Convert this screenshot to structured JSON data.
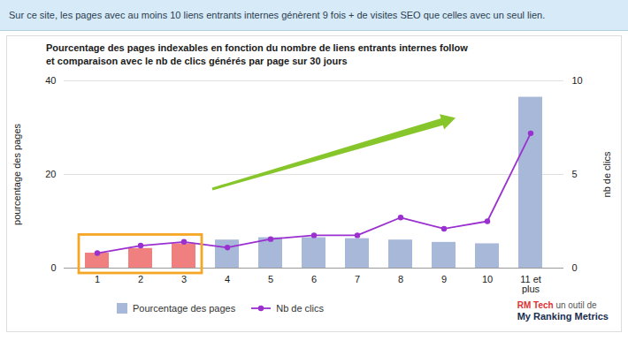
{
  "chart_data": {
    "type": "bar",
    "title": "Pourcentage des pages indexables en fonction du nombre de liens entrants internes follow",
    "subtitle": "et comparaison avec le nb de clics générés par page sur 30 jours",
    "annotations": [
      "Sur ce site, les pages avec au moins 10 liens entrants internes génèrent 9 fois + de visites SEO que celles avec un seul lien.",
      "RM Tech",
      "un outil de",
      "My Ranking Metrics"
    ],
    "categories": [
      "1",
      "2",
      "3",
      "4",
      "5",
      "6",
      "7",
      "8",
      "9",
      "10",
      "11 et\nplus"
    ],
    "series": [
      {
        "name": "Pourcentage des pages",
        "type": "bar",
        "color": "#a8b8d8",
        "colors": [
          "#f08080",
          "#f08080",
          "#f08080",
          "#a8b8d8",
          "#a8b8d8",
          "#a8b8d8",
          "#a8b8d8",
          "#a8b8d8",
          "#a8b8d8",
          "#a8b8d8",
          "#a8b8d8"
        ],
        "values": [
          3.2,
          4.2,
          5.2,
          6.0,
          6.5,
          6.5,
          6.3,
          6.0,
          5.5,
          5.2,
          36.5
        ]
      },
      {
        "name": "Nb de clics",
        "type": "line",
        "axis": "y2",
        "color": "#9b30d0",
        "marker": "circle",
        "values": [
          0.8,
          1.2,
          1.4,
          1.1,
          1.55,
          1.75,
          1.75,
          2.7,
          2.1,
          2.5,
          7.2
        ]
      }
    ],
    "ylabel": "pourcentage des pages",
    "y2label": "nb de clics",
    "ylim": [
      0,
      40
    ],
    "yticks": [
      0,
      20,
      40
    ],
    "y2lim": [
      0,
      10
    ],
    "y2ticks": [
      0,
      5,
      10
    ],
    "grid": true,
    "legend": "bottom"
  }
}
